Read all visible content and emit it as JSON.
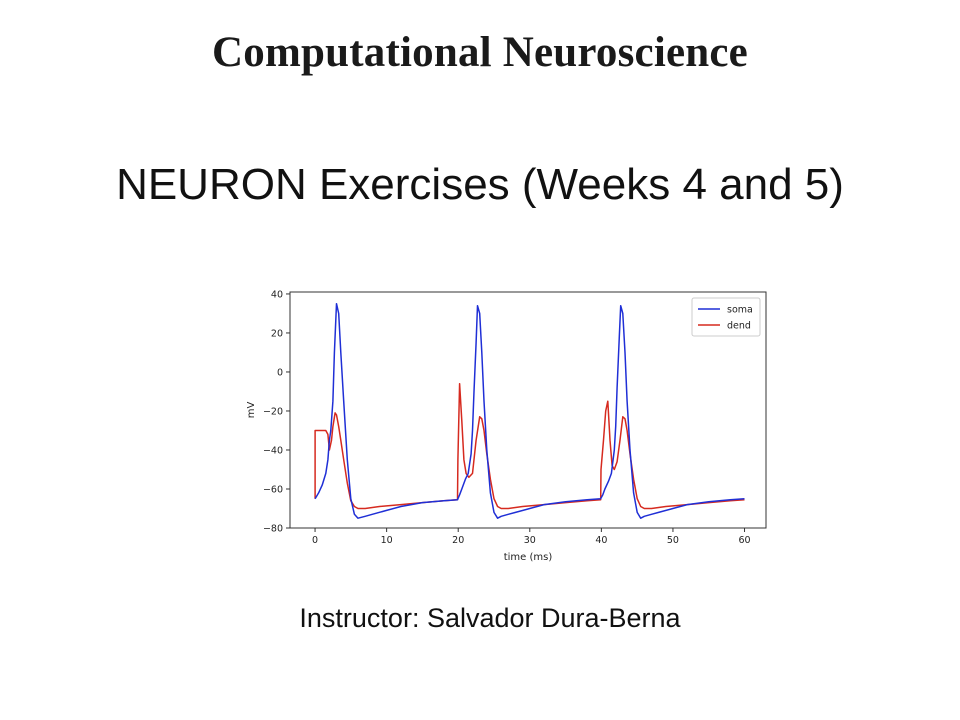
{
  "slide": {
    "course_title": "Computational Neuroscience",
    "title": "NEURON Exercises (Weeks 4 and 5)",
    "instructor": "Instructor: Salvador Dura-Berna"
  },
  "chart_data": {
    "type": "line",
    "title": "",
    "xlabel": "time (ms)",
    "ylabel": "mV",
    "xlim": [
      -3.5,
      63
    ],
    "ylim": [
      -80,
      41
    ],
    "xticks": [
      0,
      10,
      20,
      30,
      40,
      50,
      60
    ],
    "yticks": [
      -80,
      -60,
      -40,
      -20,
      0,
      20,
      40
    ],
    "grid": false,
    "legend_position": "top-right",
    "series": [
      {
        "name": "soma",
        "color": "#1f2fd6",
        "x": [
          0,
          0.5,
          1,
          1.5,
          1.8,
          2.0,
          2.2,
          2.5,
          2.7,
          3.0,
          3.3,
          3.6,
          4.0,
          4.5,
          5.0,
          5.5,
          6.0,
          7,
          8,
          10,
          12,
          15,
          18,
          19.9,
          20.2,
          20.5,
          21,
          21.4,
          21.8,
          22.0,
          22.2,
          22.5,
          22.7,
          23.0,
          23.3,
          23.6,
          24.0,
          24.5,
          25.0,
          25.5,
          26.0,
          27,
          28,
          30,
          32,
          35,
          38,
          39.9,
          40.2,
          40.5,
          41,
          41.4,
          41.8,
          42.0,
          42.2,
          42.5,
          42.7,
          43.0,
          43.3,
          43.6,
          44.0,
          44.5,
          45.0,
          45.5,
          46.0,
          47,
          48,
          50,
          52,
          55,
          58,
          60
        ],
        "y": [
          -65,
          -62,
          -58,
          -52,
          -45,
          -35,
          -30,
          -15,
          10,
          35,
          30,
          10,
          -15,
          -45,
          -65,
          -73,
          -75,
          -74,
          -73,
          -71,
          -69,
          -67,
          -66,
          -65.5,
          -63,
          -60,
          -55,
          -52,
          -42,
          -30,
          -10,
          15,
          34,
          30,
          10,
          -15,
          -40,
          -62,
          -72,
          -75,
          -74,
          -73,
          -72,
          -70,
          -68,
          -66.5,
          -65.5,
          -65,
          -63,
          -60,
          -56,
          -52,
          -40,
          -28,
          -8,
          18,
          34,
          30,
          10,
          -15,
          -40,
          -62,
          -72,
          -75,
          -74,
          -73,
          -72,
          -70,
          -68,
          -66.5,
          -65.5,
          -65
        ]
      },
      {
        "name": "dend",
        "color": "#d62a1f",
        "x": [
          0,
          0.01,
          0.5,
          1,
          1.5,
          1.8,
          2.0,
          2.3,
          2.5,
          2.8,
          3.0,
          3.3,
          3.6,
          4.0,
          4.5,
          5.0,
          5.5,
          6.0,
          7,
          9,
          12,
          15,
          18,
          19.9,
          19.95,
          20.2,
          20.5,
          20.8,
          21.1,
          21.5,
          22.0,
          22.5,
          23.0,
          23.3,
          23.6,
          24.0,
          24.5,
          25.0,
          25.5,
          26.0,
          27,
          29,
          32,
          35,
          38,
          39.9,
          39.95,
          40.3,
          40.6,
          40.9,
          41.2,
          41.5,
          41.8,
          42.2,
          42.6,
          43.0,
          43.3,
          43.6,
          44.0,
          44.5,
          45.0,
          45.5,
          46.0,
          47,
          49,
          52,
          55,
          58,
          60
        ],
        "y": [
          -65,
          -30,
          -30,
          -30,
          -30,
          -32,
          -40,
          -35,
          -28,
          -21,
          -22,
          -28,
          -35,
          -45,
          -57,
          -66,
          -69,
          -70,
          -70,
          -69,
          -68,
          -67,
          -66,
          -65.5,
          -45,
          -6,
          -25,
          -45,
          -52,
          -54,
          -52,
          -35,
          -23,
          -24,
          -30,
          -42,
          -55,
          -65,
          -69,
          -70,
          -70,
          -69,
          -68,
          -67,
          -66,
          -65.5,
          -50,
          -35,
          -20,
          -15,
          -35,
          -48,
          -50,
          -46,
          -35,
          -23,
          -24,
          -30,
          -42,
          -55,
          -65,
          -69,
          -70,
          -70,
          -69,
          -68,
          -67,
          -66,
          -65.5
        ]
      }
    ]
  }
}
